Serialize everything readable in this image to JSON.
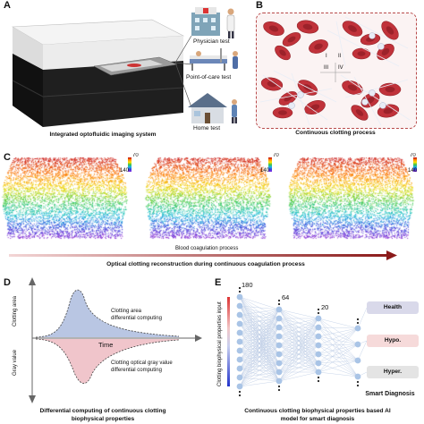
{
  "panels": {
    "a": {
      "letter": "A",
      "caption": "Integrated optofluidic imaging system",
      "labels": [
        "Physician test",
        "Point-of-care test",
        "Home test"
      ]
    },
    "b": {
      "letter": "B",
      "caption": "Continuous clotting process",
      "quadrants": [
        "I",
        "II",
        "III",
        "IV"
      ]
    },
    "c": {
      "letter": "C",
      "cbar_top": "70",
      "cbar_bottom": "140",
      "arrow_label": "Blood coagulation process",
      "caption": "Optical clotting reconstruction during continuous coagulation process"
    },
    "d": {
      "letter": "D",
      "ylabel_top": "Clotting area",
      "ylabel_bottom": "Gray value",
      "time_label": "Time",
      "annot_top_1": "Clotting area",
      "annot_top_2": "differential computing",
      "annot_bottom_1": "Clotting optical gray value",
      "annot_bottom_2": "differential computing",
      "caption_1": "Differential computing of continuous clotting",
      "caption_2": "biophysical properties"
    },
    "e": {
      "letter": "E",
      "side_label": "Clotting biophysical properties input",
      "layer_counts": [
        "180",
        "64",
        "20"
      ],
      "outputs": [
        "Health",
        "Hypo.",
        "Hyper."
      ],
      "output_colors": [
        "#d9d9ea",
        "#f6dada",
        "#e4e4e4"
      ],
      "smart_label": "Smart Diagnosis",
      "caption_1": "Continuous clotting biophysical properties based AI",
      "caption_2": "model for smart diagnosis"
    }
  }
}
